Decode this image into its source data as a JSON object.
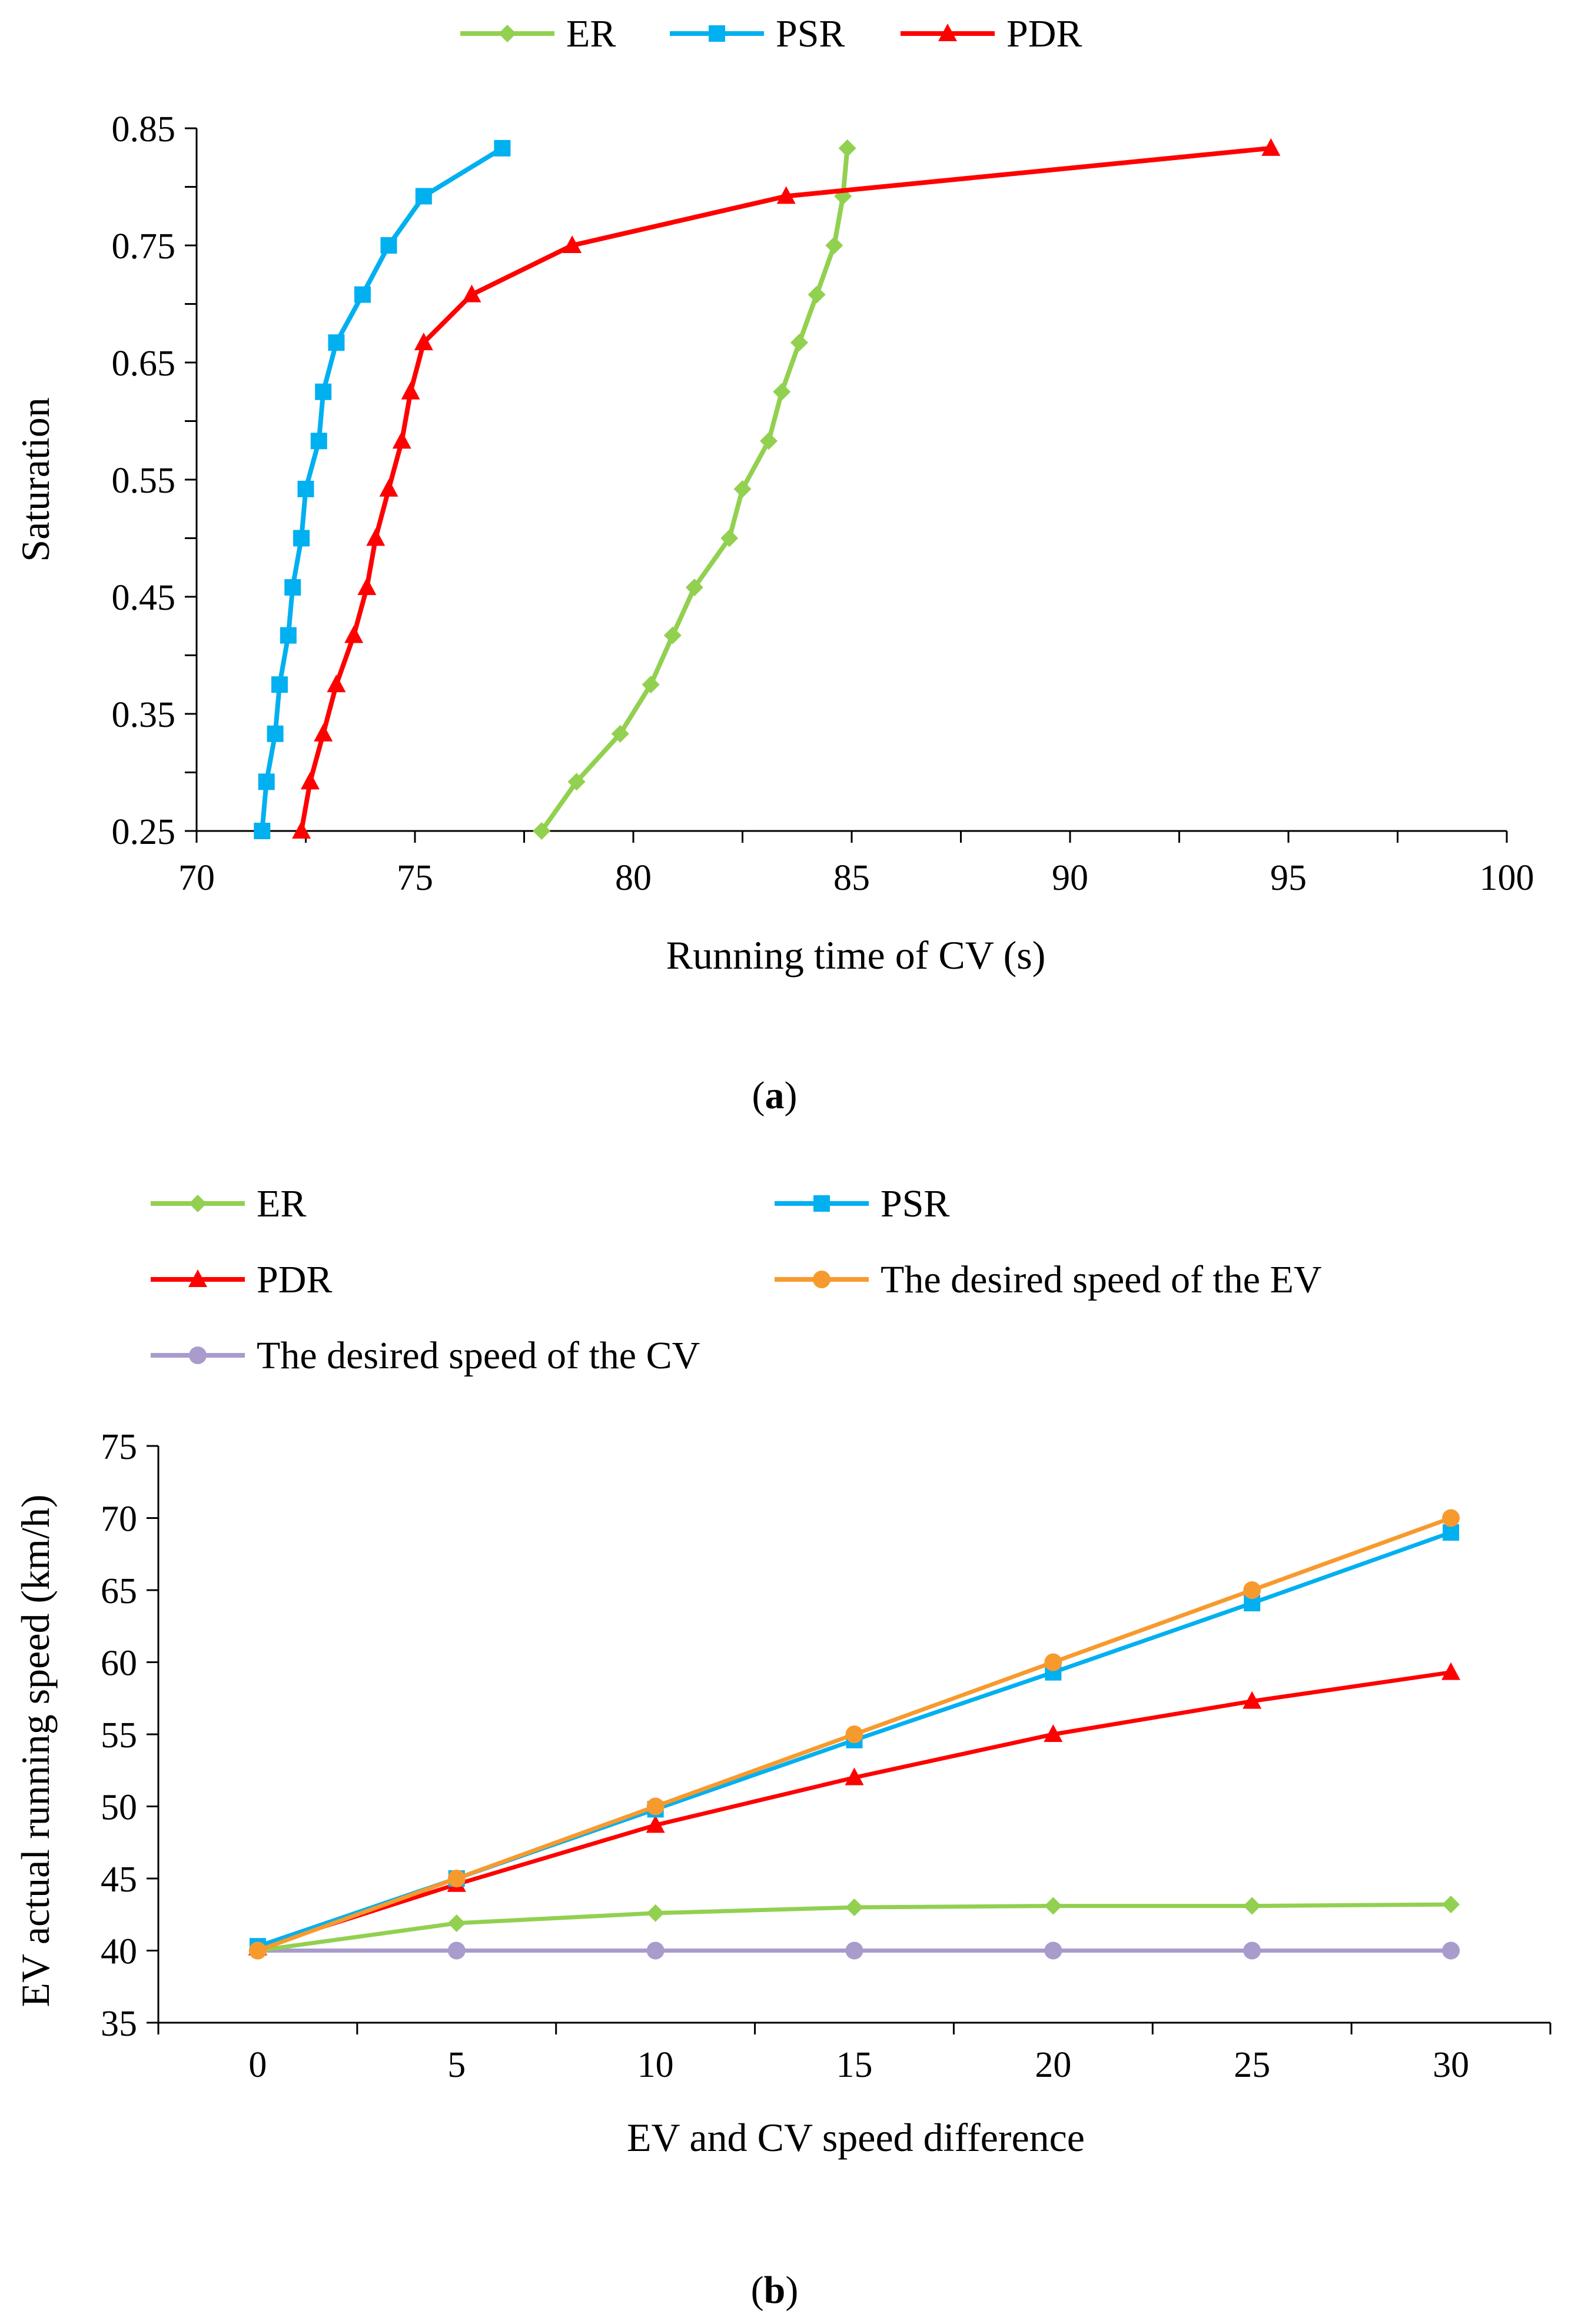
{
  "chart_data": [
    {
      "type": "line",
      "panel_label": "a",
      "xlabel": "Running time of CV (s)",
      "ylabel": "Saturation",
      "xlim": [
        70,
        100
      ],
      "ylim": [
        0.25,
        0.85
      ],
      "xticks": [
        "70",
        "75",
        "80",
        "85",
        "90",
        "95",
        "100"
      ],
      "yticks": [
        "0.25",
        "0.35",
        "0.45",
        "0.55",
        "0.65",
        "0.75",
        "0.85"
      ],
      "legend_position": "top",
      "series": [
        {
          "name": "ER",
          "color": "#92D050",
          "marker": "diamond",
          "points": [
            [
              77.9,
              0.25
            ],
            [
              78.7,
              0.292
            ],
            [
              79.7,
              0.333
            ],
            [
              80.4,
              0.375
            ],
            [
              80.9,
              0.417
            ],
            [
              81.4,
              0.458
            ],
            [
              82.2,
              0.5
            ],
            [
              82.5,
              0.542
            ],
            [
              83.1,
              0.583
            ],
            [
              83.4,
              0.625
            ],
            [
              83.8,
              0.667
            ],
            [
              84.2,
              0.708
            ],
            [
              84.6,
              0.75
            ],
            [
              84.8,
              0.792
            ],
            [
              84.9,
              0.833
            ]
          ]
        },
        {
          "name": "PSR",
          "color": "#00B0F0",
          "marker": "square",
          "points": [
            [
              71.5,
              0.25
            ],
            [
              71.6,
              0.292
            ],
            [
              71.8,
              0.333
            ],
            [
              71.9,
              0.375
            ],
            [
              72.1,
              0.417
            ],
            [
              72.2,
              0.458
            ],
            [
              72.4,
              0.5
            ],
            [
              72.5,
              0.542
            ],
            [
              72.8,
              0.583
            ],
            [
              72.9,
              0.625
            ],
            [
              73.2,
              0.667
            ],
            [
              73.8,
              0.708
            ],
            [
              74.4,
              0.75
            ],
            [
              75.2,
              0.792
            ],
            [
              77.0,
              0.833
            ]
          ]
        },
        {
          "name": "PDR",
          "color": "#FF0000",
          "marker": "triangle",
          "points": [
            [
              72.4,
              0.25
            ],
            [
              72.6,
              0.292
            ],
            [
              72.9,
              0.333
            ],
            [
              73.2,
              0.375
            ],
            [
              73.6,
              0.417
            ],
            [
              73.9,
              0.458
            ],
            [
              74.1,
              0.5
            ],
            [
              74.4,
              0.542
            ],
            [
              74.7,
              0.583
            ],
            [
              74.9,
              0.625
            ],
            [
              75.2,
              0.667
            ],
            [
              76.3,
              0.708
            ],
            [
              78.6,
              0.75
            ],
            [
              83.5,
              0.792
            ],
            [
              94.6,
              0.833
            ]
          ]
        }
      ]
    },
    {
      "type": "line",
      "panel_label": "b",
      "xlabel": "EV and CV speed difference",
      "ylabel": "EV actual running speed (km/h)",
      "xlim": [
        -2.5,
        32.5
      ],
      "ylim": [
        35,
        75
      ],
      "categories": [
        "0",
        "5",
        "10",
        "15",
        "20",
        "25",
        "30"
      ],
      "xticks": [
        "0",
        "5",
        "10",
        "15",
        "20",
        "25",
        "30"
      ],
      "yticks": [
        "35",
        "40",
        "45",
        "50",
        "55",
        "60",
        "65",
        "70",
        "75"
      ],
      "legend_position": "top",
      "series": [
        {
          "name": "ER",
          "color": "#92D050",
          "marker": "diamond",
          "values": [
            40.0,
            41.9,
            42.6,
            43.0,
            43.1,
            43.1,
            43.2
          ]
        },
        {
          "name": "PSR",
          "color": "#00B0F0",
          "marker": "square",
          "values": [
            40.3,
            45.0,
            49.8,
            54.6,
            59.3,
            64.1,
            69.0
          ]
        },
        {
          "name": "PDR",
          "color": "#FF0000",
          "marker": "triangle",
          "values": [
            40.2,
            44.6,
            48.7,
            52.0,
            55.0,
            57.3,
            59.3
          ]
        },
        {
          "name": "The desired speed of the EV",
          "color": "#F79A2E",
          "marker": "circle",
          "values": [
            40.0,
            45.0,
            50.0,
            55.0,
            60.0,
            65.0,
            70.0
          ]
        },
        {
          "name": "The desired speed of the CV",
          "color": "#A99BCB",
          "marker": "circle",
          "values": [
            40.0,
            40.0,
            40.0,
            40.0,
            40.0,
            40.0,
            40.0
          ]
        }
      ]
    }
  ]
}
